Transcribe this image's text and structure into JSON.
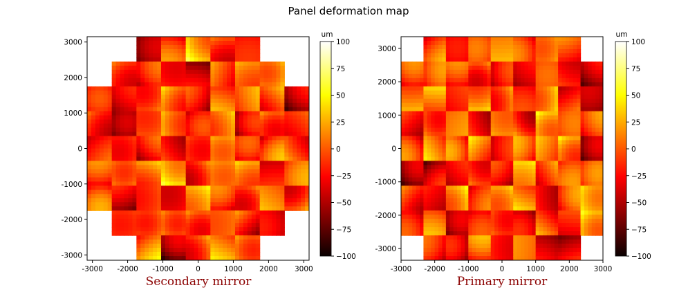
{
  "title": "Panel deformation map",
  "chart_data": [
    {
      "type": "heatmap",
      "title": "Secondary mirror",
      "xlim": [
        -3150,
        3150
      ],
      "ylim": [
        -3150,
        3150
      ],
      "x_ticks": [
        "-3000",
        "-2000",
        "-1000",
        "0",
        "1000",
        "2000",
        "3000"
      ],
      "y_ticks": [
        "3000",
        "2000",
        "1000",
        "0",
        "-1000",
        "-2000",
        "-3000"
      ],
      "x_tick_values": [
        -3000,
        -2000,
        -1000,
        0,
        1000,
        2000,
        3000
      ],
      "y_tick_values": [
        3000,
        2000,
        1000,
        0,
        -1000,
        -2000,
        -3000
      ],
      "panel_grid": {
        "columns": 9,
        "rows": 9
      },
      "panel_rows": [
        {
          "row": 0,
          "columns": [
            2,
            3,
            4,
            5,
            6
          ]
        },
        {
          "row": 1,
          "columns": [
            1,
            2,
            3,
            4,
            5,
            6,
            7
          ]
        },
        {
          "row": 2,
          "columns": [
            0,
            1,
            2,
            3,
            4,
            5,
            6,
            7,
            8
          ]
        },
        {
          "row": 3,
          "columns": [
            0,
            1,
            2,
            3,
            4,
            5,
            6,
            7,
            8
          ]
        },
        {
          "row": 4,
          "columns": [
            0,
            1,
            2,
            3,
            4,
            5,
            6,
            7,
            8
          ]
        },
        {
          "row": 5,
          "columns": [
            0,
            1,
            2,
            3,
            4,
            5,
            6,
            7,
            8
          ]
        },
        {
          "row": 6,
          "columns": [
            0,
            1,
            2,
            3,
            4,
            5,
            6,
            7,
            8
          ]
        },
        {
          "row": 7,
          "columns": [
            1,
            2,
            3,
            4,
            5,
            6,
            7
          ]
        },
        {
          "row": 8,
          "columns": [
            2,
            3,
            4,
            5,
            6
          ]
        }
      ],
      "colorbar": {
        "label": "um",
        "min": -100,
        "max": 100,
        "ticks": [
          "100",
          "75",
          "50",
          "25",
          "0",
          "−25",
          "−50",
          "−75",
          "−100"
        ],
        "colormap": "hot"
      }
    },
    {
      "type": "heatmap",
      "title": "Primary mirror",
      "xlim": [
        -3000,
        3000
      ],
      "ylim": [
        -3350,
        3350
      ],
      "x_ticks": [
        "-3000",
        "-2000",
        "-1000",
        "0",
        "1000",
        "2000",
        "3000"
      ],
      "y_ticks": [
        "3000",
        "2000",
        "1000",
        "0",
        "-1000",
        "-2000",
        "-3000"
      ],
      "x_tick_values": [
        -3000,
        -2000,
        -1000,
        0,
        1000,
        2000,
        3000
      ],
      "y_tick_values": [
        3000,
        2000,
        1000,
        0,
        -1000,
        -2000,
        -3000
      ],
      "panel_grid": {
        "columns": 9,
        "rows": 9
      },
      "panel_rows": [
        {
          "row": 0,
          "columns": [
            1,
            2,
            3,
            4,
            5,
            6,
            7
          ]
        },
        {
          "row": 1,
          "columns": [
            0,
            1,
            2,
            3,
            4,
            5,
            6,
            7,
            8
          ]
        },
        {
          "row": 2,
          "columns": [
            0,
            1,
            2,
            3,
            4,
            5,
            6,
            7,
            8
          ]
        },
        {
          "row": 3,
          "columns": [
            0,
            1,
            2,
            3,
            4,
            5,
            6,
            7,
            8
          ]
        },
        {
          "row": 4,
          "columns": [
            0,
            1,
            2,
            3,
            4,
            5,
            6,
            7,
            8
          ]
        },
        {
          "row": 5,
          "columns": [
            0,
            1,
            2,
            3,
            4,
            5,
            6,
            7,
            8
          ]
        },
        {
          "row": 6,
          "columns": [
            0,
            1,
            2,
            3,
            4,
            5,
            6,
            7,
            8
          ]
        },
        {
          "row": 7,
          "columns": [
            0,
            1,
            2,
            3,
            4,
            5,
            6,
            7,
            8
          ]
        },
        {
          "row": 8,
          "columns": [
            1,
            2,
            3,
            4,
            5,
            6,
            7
          ]
        }
      ],
      "colorbar": {
        "label": "um",
        "min": -100,
        "max": 100,
        "ticks": [
          "100",
          "75",
          "50",
          "25",
          "0",
          "−25",
          "−50",
          "−75",
          "−100"
        ],
        "colormap": "hot"
      }
    }
  ]
}
